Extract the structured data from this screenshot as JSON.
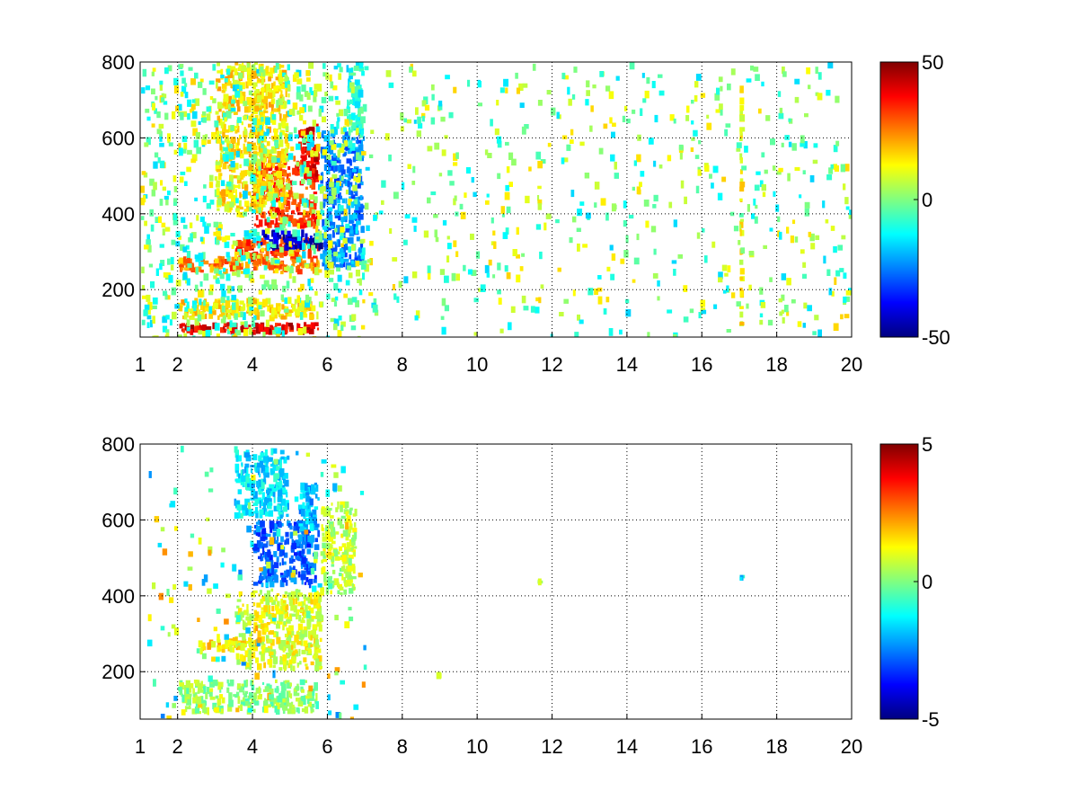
{
  "chart_data": [
    {
      "type": "heatmap",
      "title": "",
      "xlabel": "",
      "ylabel": "",
      "xlim": [
        1,
        20
      ],
      "ylim": [
        75,
        800
      ],
      "xticks": [
        "1",
        "2",
        "4",
        "6",
        "8",
        "10",
        "12",
        "14",
        "16",
        "18",
        "20"
      ],
      "yticks": [
        "200",
        "400",
        "600",
        "800"
      ],
      "grid": true,
      "colormap": "jet",
      "colorbar": {
        "min": -50,
        "max": 50,
        "ticks": [
          "50",
          "0",
          "-50"
        ]
      },
      "features": [
        {
          "x": [
            2.0,
            5.8
          ],
          "y": [
            80,
            115
          ],
          "value": 40
        },
        {
          "x": [
            2.0,
            5.8
          ],
          "y": [
            120,
            180
          ],
          "value": 15
        },
        {
          "x": [
            2.0,
            5.8
          ],
          "y": [
            240,
            290
          ],
          "value": 25
        },
        {
          "x": [
            3.5,
            5.8
          ],
          "y": [
            280,
            340
          ],
          "value": 30
        },
        {
          "x": [
            4.2,
            5.9
          ],
          "y": [
            300,
            360
          ],
          "value": -45
        },
        {
          "x": [
            4.0,
            5.8
          ],
          "y": [
            360,
            560
          ],
          "value": 32
        },
        {
          "x": [
            5.2,
            5.8
          ],
          "y": [
            480,
            640
          ],
          "value": 40
        },
        {
          "x": [
            3.0,
            5.0
          ],
          "y": [
            400,
            800
          ],
          "value": 15
        },
        {
          "x": [
            5.8,
            7.0
          ],
          "y": [
            250,
            620
          ],
          "value": -25
        },
        {
          "x": [
            6.5,
            7.0
          ],
          "y": [
            600,
            800
          ],
          "value": -10
        },
        {
          "x": [
            17.0,
            17.1
          ],
          "y": [
            100,
            750
          ],
          "value": 12
        },
        {
          "x": [
            11.6,
            11.7
          ],
          "y": [
            400,
            480
          ],
          "value": 12
        }
      ]
    },
    {
      "type": "heatmap",
      "title": "",
      "xlabel": "",
      "ylabel": "",
      "xlim": [
        1,
        20
      ],
      "ylim": [
        75,
        800
      ],
      "xticks": [
        "1",
        "2",
        "4",
        "6",
        "8",
        "10",
        "12",
        "14",
        "16",
        "18",
        "20"
      ],
      "yticks": [
        "200",
        "400",
        "600",
        "800"
      ],
      "grid": true,
      "colormap": "jet",
      "colorbar": {
        "min": -5,
        "max": 5,
        "ticks": [
          "5",
          "0",
          "-5"
        ]
      },
      "features": [
        {
          "x": [
            2.0,
            5.8
          ],
          "y": [
            85,
            180
          ],
          "value": 0.2
        },
        {
          "x": [
            2.6,
            4.2
          ],
          "y": [
            250,
            290
          ],
          "value": 1.5
        },
        {
          "x": [
            3.5,
            5.9
          ],
          "y": [
            200,
            420
          ],
          "value": 1.0
        },
        {
          "x": [
            4.0,
            5.8
          ],
          "y": [
            420,
            600
          ],
          "value": -2.8
        },
        {
          "x": [
            5.2,
            5.8
          ],
          "y": [
            560,
            700
          ],
          "value": -2.0
        },
        {
          "x": [
            5.8,
            6.8
          ],
          "y": [
            400,
            650
          ],
          "value": 0.6
        },
        {
          "x": [
            3.5,
            5.0
          ],
          "y": [
            600,
            790
          ],
          "value": -1.5
        },
        {
          "x": [
            11.6,
            11.7
          ],
          "y": [
            425,
            450
          ],
          "value": 0.5
        },
        {
          "x": [
            17.0,
            17.1
          ],
          "y": [
            440,
            455
          ],
          "value": -1.5
        },
        {
          "x": [
            8.9,
            9.0
          ],
          "y": [
            180,
            200
          ],
          "value": 1.5
        }
      ]
    }
  ]
}
